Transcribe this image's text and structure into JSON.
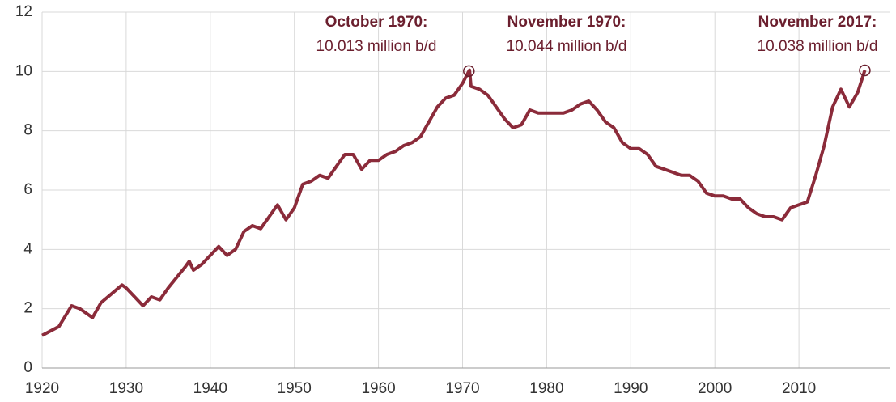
{
  "chart_data": {
    "type": "line",
    "x": [
      1920,
      1922,
      1923.5,
      1924.5,
      1926,
      1927,
      1929.5,
      1930,
      1932,
      1933,
      1934,
      1935,
      1937,
      1937.5,
      1938,
      1939,
      1940,
      1941,
      1942,
      1943,
      1944,
      1945,
      1946,
      1947,
      1948,
      1949,
      1950,
      1951,
      1952,
      1953,
      1954,
      1955,
      1956,
      1957,
      1958,
      1959,
      1960,
      1961,
      1962,
      1963,
      1964,
      1965,
      1966,
      1967,
      1968,
      1969,
      1970,
      1970.75,
      1970.83,
      1971,
      1972,
      1973,
      1974,
      1975,
      1976,
      1977,
      1978,
      1979,
      1980,
      1981,
      1982,
      1983,
      1984,
      1985,
      1986,
      1987,
      1988,
      1989,
      1990,
      1991,
      1992,
      1993,
      1994,
      1995,
      1996,
      1997,
      1998,
      1999,
      2000,
      2001,
      2002,
      2003,
      2004,
      2005,
      2006,
      2007,
      2008,
      2009,
      2010,
      2011,
      2012,
      2013,
      2014,
      2015,
      2016,
      2017,
      2017.83
    ],
    "series": [
      {
        "color": "#8b2b3a",
        "values": [
          1.1,
          1.4,
          2.1,
          2.0,
          1.7,
          2.2,
          2.8,
          2.7,
          2.1,
          2.4,
          2.3,
          2.7,
          3.4,
          3.6,
          3.3,
          3.5,
          3.8,
          4.1,
          3.8,
          4.0,
          4.6,
          4.8,
          4.7,
          5.1,
          5.5,
          5.0,
          5.4,
          6.2,
          6.3,
          6.5,
          6.4,
          6.8,
          7.2,
          7.2,
          6.7,
          7.0,
          7.0,
          7.2,
          7.3,
          7.5,
          7.6,
          7.8,
          8.3,
          8.8,
          9.1,
          9.2,
          9.6,
          10.013,
          10.044,
          9.5,
          9.4,
          9.2,
          8.8,
          8.4,
          8.1,
          8.2,
          8.7,
          8.6,
          8.6,
          8.6,
          8.6,
          8.7,
          8.9,
          9.0,
          8.7,
          8.3,
          8.1,
          7.6,
          7.4,
          7.4,
          7.2,
          6.8,
          6.7,
          6.6,
          6.5,
          6.5,
          6.3,
          5.9,
          5.8,
          5.8,
          5.7,
          5.7,
          5.4,
          5.2,
          5.1,
          5.1,
          5.0,
          5.4,
          5.5,
          5.6,
          6.5,
          7.5,
          8.8,
          9.4,
          8.8,
          9.3,
          10.038
        ]
      }
    ],
    "xlim": [
      1920,
      2020
    ],
    "xticks": [
      1920,
      1930,
      1940,
      1950,
      1960,
      1970,
      1980,
      1990,
      2000,
      2010
    ],
    "ylim": [
      0,
      12
    ],
    "yticks": [
      0,
      2,
      4,
      6,
      8,
      10,
      12
    ],
    "grid": true,
    "annotations": [
      {
        "title": "October 1970:",
        "text": "10.013 million b/d",
        "x": 1970.75,
        "y": 10.013,
        "marker": true
      },
      {
        "title": "November 1970:",
        "text": "10.044 million b/d",
        "x": 1970.83,
        "y": 10.044,
        "marker": false
      },
      {
        "title": "November 2017:",
        "text": "10.038 million b/d",
        "x": 2017.83,
        "y": 10.038,
        "marker": true
      }
    ]
  }
}
